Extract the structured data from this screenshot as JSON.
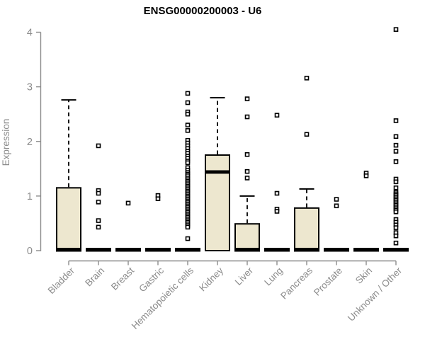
{
  "chart_data": {
    "type": "boxplot",
    "title": "ENSG00000200003 - U6",
    "ylabel": "Expression",
    "ylim": [
      0,
      4
    ],
    "yticks": [
      0,
      1,
      2,
      3,
      4
    ],
    "grid": false,
    "legend": "none",
    "colors": {
      "box_fill": "#ede7cf",
      "box_stroke": "#000000",
      "median": "#000000",
      "whisker": "#000000",
      "outlier_stroke": "#000000",
      "axis": "#8b8b8b",
      "tick_label": "#8b8b8b",
      "title": "#000000"
    },
    "categories": [
      {
        "label": "Bladder",
        "q1": 0,
        "median": 0,
        "q3": 1.15,
        "whisker_low": 0,
        "whisker_high": 2.76,
        "outliers": []
      },
      {
        "label": "Brain",
        "q1": 0,
        "median": 0,
        "q3": 0,
        "whisker_low": 0,
        "whisker_high": 0,
        "outliers": [
          1.92,
          1.1,
          1.05,
          0.89,
          0.55,
          0.43
        ]
      },
      {
        "label": "Breast",
        "q1": 0,
        "median": 0,
        "q3": 0,
        "whisker_low": 0,
        "whisker_high": 0,
        "outliers": [
          0.87
        ]
      },
      {
        "label": "Gastric",
        "q1": 0,
        "median": 0,
        "q3": 0,
        "whisker_low": 0,
        "whisker_high": 0,
        "outliers": [
          1.01,
          0.95
        ]
      },
      {
        "label": "Hematopoietic cells",
        "q1": 0,
        "median": 0,
        "q3": 0,
        "whisker_low": 0,
        "whisker_high": 0,
        "outliers": [
          2.88,
          2.71,
          2.54,
          2.5,
          2.3,
          2.2,
          2.02,
          1.97,
          1.92,
          1.87,
          1.82,
          1.78,
          1.73,
          1.69,
          1.64,
          1.61,
          1.52,
          1.47,
          1.43,
          1.4,
          1.37,
          1.33,
          1.3,
          1.27,
          1.24,
          1.21,
          1.18,
          1.15,
          1.12,
          1.09,
          1.06,
          1.03,
          1.0,
          0.97,
          0.94,
          0.91,
          0.88,
          0.85,
          0.82,
          0.79,
          0.76,
          0.73,
          0.7,
          0.67,
          0.64,
          0.61,
          0.58,
          0.55,
          0.52,
          0.49,
          0.46,
          0.43,
          0.22
        ]
      },
      {
        "label": "Kidney",
        "q1": 0,
        "median": 1.44,
        "q3": 1.75,
        "whisker_low": 0,
        "whisker_high": 2.8,
        "outliers": []
      },
      {
        "label": "Liver",
        "q1": 0,
        "median": 0,
        "q3": 0.49,
        "whisker_low": 0,
        "whisker_high": 1.0,
        "outliers": [
          2.78,
          2.45,
          1.76,
          1.45,
          1.33
        ]
      },
      {
        "label": "Lung",
        "q1": 0,
        "median": 0,
        "q3": 0,
        "whisker_low": 0,
        "whisker_high": 0,
        "outliers": [
          2.48,
          1.05,
          0.76,
          0.72
        ]
      },
      {
        "label": "Pancreas",
        "q1": 0,
        "median": 0,
        "q3": 0.78,
        "whisker_low": 0,
        "whisker_high": 1.13,
        "outliers": [
          3.16,
          2.13
        ]
      },
      {
        "label": "Prostate",
        "q1": 0,
        "median": 0,
        "q3": 0,
        "whisker_low": 0,
        "whisker_high": 0,
        "outliers": [
          0.94,
          0.82
        ]
      },
      {
        "label": "Skin",
        "q1": 0,
        "median": 0,
        "q3": 0,
        "whisker_low": 0,
        "whisker_high": 0,
        "outliers": [
          1.42,
          1.37
        ]
      },
      {
        "label": "Unknown / Other",
        "q1": 0,
        "median": 0,
        "q3": 0,
        "whisker_low": 0,
        "whisker_high": 0,
        "outliers": [
          4.05,
          2.38,
          2.09,
          1.93,
          1.82,
          1.63,
          1.31,
          1.26,
          1.15,
          1.07,
          1.04,
          1.01,
          0.98,
          0.95,
          0.92,
          0.89,
          0.86,
          0.83,
          0.8,
          0.77,
          0.74,
          0.71,
          0.57,
          0.52,
          0.47,
          0.42,
          0.33,
          0.27,
          0.14
        ]
      }
    ]
  }
}
